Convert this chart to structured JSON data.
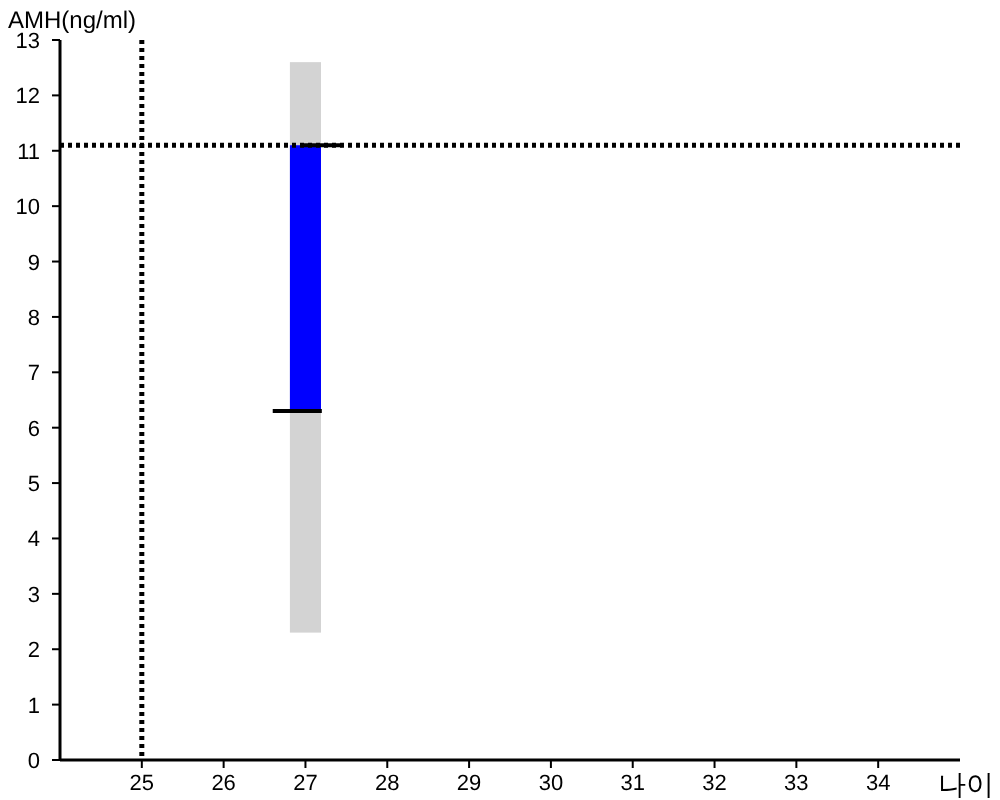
{
  "chart_data": {
    "type": "bar",
    "ylabel": "AMH(ng/ml)",
    "xlabel": "나이",
    "x": [
      27
    ],
    "series": [
      {
        "color": "#d3d3d3",
        "base": [
          2.3
        ],
        "values": [
          10.3
        ]
      },
      {
        "color": "#0000ff",
        "base": [
          6.3
        ],
        "values": [
          4.8
        ]
      },
      {
        "type": "line",
        "color": "#000000",
        "x": [
          26.6,
          27.2
        ],
        "values": [
          6.3,
          6.3
        ]
      },
      {
        "type": "line",
        "color": "#000000",
        "x": [
          26.95,
          27.45
        ],
        "values": [
          11.1,
          11.1
        ]
      }
    ],
    "xlim": [
      24,
      35
    ],
    "ylim": [
      0,
      13
    ],
    "xticks": [
      25,
      26,
      27,
      28,
      29,
      30,
      31,
      32,
      33,
      34
    ],
    "yticks": [
      0,
      1,
      2,
      3,
      4,
      5,
      6,
      7,
      8,
      9,
      10,
      11,
      12,
      13
    ],
    "ref_lines": [
      {
        "axis": "x",
        "value": 25,
        "line_style": "dotted",
        "color": "#000000"
      },
      {
        "axis": "y",
        "value": 11.1,
        "line_style": "dotted",
        "color": "#000000"
      }
    ]
  }
}
